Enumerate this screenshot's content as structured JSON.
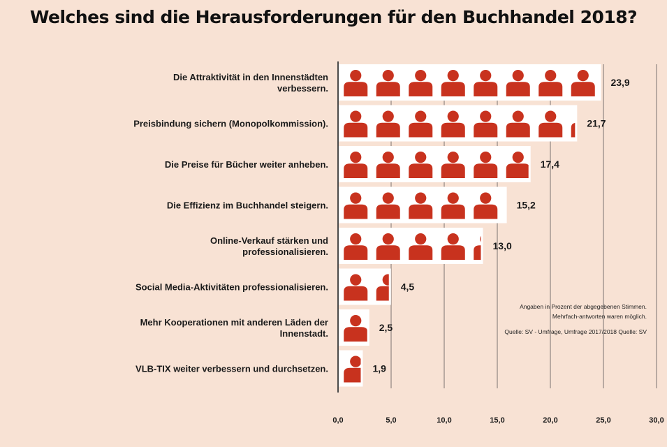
{
  "title": "Welches sind die Herausforderungen für den Buchhandel 2018?",
  "chart_data": {
    "type": "bar",
    "orientation": "horizontal",
    "categories": [
      "Die Attraktivität in den Innenstädten verbessern.",
      "Preisbindung sichern (Monopolkommission).",
      "Die Preise für Bücher weiter anheben.",
      "Die Effizienz im Buchhandel steigern.",
      "Online-Verkauf stärken und professionalisieren.",
      "Social Media-Aktivitäten professionalisieren.",
      "Mehr Kooperationen mit anderen Läden der Innenstadt.",
      "VLB-TIX weiter verbessern und durchsetzen."
    ],
    "values": [
      23.9,
      21.7,
      17.4,
      15.2,
      13.0,
      4.5,
      2.5,
      1.9
    ],
    "value_labels": [
      "23,9",
      "21,7",
      "17,4",
      "15,2",
      "13,0",
      "4,5",
      "2,5",
      "1,9"
    ],
    "xlim": [
      0,
      30
    ],
    "ticks": [
      0,
      5,
      10,
      15,
      20,
      25,
      30
    ],
    "tick_labels": [
      "0,0",
      "5,0",
      "10,0",
      "15,0",
      "20,0",
      "25,0",
      "30,0"
    ],
    "grid": true,
    "colors": {
      "icon": "#c8321e",
      "bar": "#ffffff",
      "grid": "#b9aaa2",
      "axis": "#4a4a4a"
    },
    "icon": "person-icon"
  },
  "note": {
    "line1": "Angaben in Prozent der abgegebenen Stimmen. Mehrfach-antworten waren möglich.",
    "line2": "Quelle: SV - Umfrage, Umfrage 2017/2018 Quelle: SV"
  }
}
